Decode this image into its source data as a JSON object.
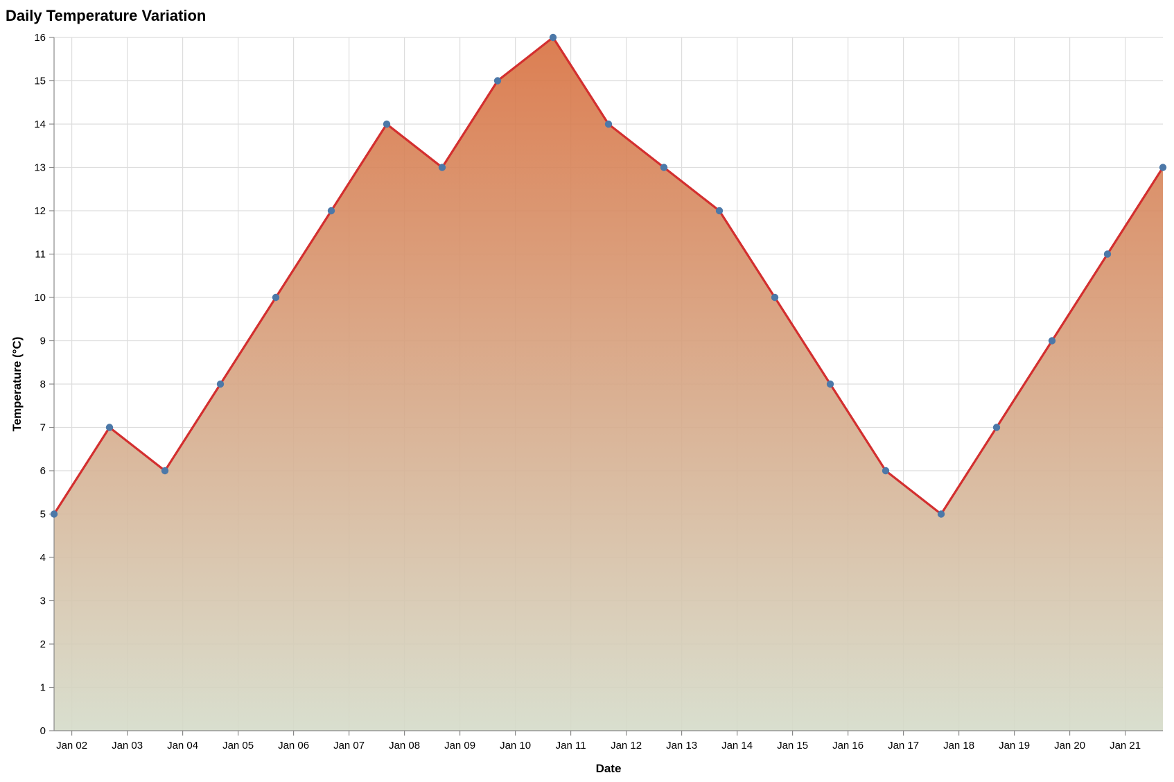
{
  "chart_data": {
    "type": "area",
    "title": "Daily Temperature Variation",
    "xlabel": "Date",
    "ylabel": "Temperature (°C)",
    "x_ticks": [
      "Jan 02",
      "Jan 03",
      "Jan 04",
      "Jan 05",
      "Jan 06",
      "Jan 07",
      "Jan 08",
      "Jan 09",
      "Jan 10",
      "Jan 11",
      "Jan 12",
      "Jan 13",
      "Jan 14",
      "Jan 15",
      "Jan 16",
      "Jan 17",
      "Jan 18",
      "Jan 19",
      "Jan 20",
      "Jan 21"
    ],
    "y_ticks": [
      0,
      1,
      2,
      3,
      4,
      5,
      6,
      7,
      8,
      9,
      10,
      11,
      12,
      13,
      14,
      15,
      16
    ],
    "ylim": [
      0,
      16
    ],
    "grid": true,
    "colors": {
      "line": "#d32f2f",
      "point": "#4c78a8",
      "area_top": "#d8703f",
      "area_bottom": "#d5dbc9",
      "grid": "#dddddd",
      "axis": "#888888"
    },
    "points": [
      {
        "x": "2023-01-01",
        "y": 5
      },
      {
        "x": "2023-01-02",
        "y": 7
      },
      {
        "x": "2023-01-03",
        "y": 6
      },
      {
        "x": "2023-01-04",
        "y": 8
      },
      {
        "x": "2023-01-05",
        "y": 10
      },
      {
        "x": "2023-01-06",
        "y": 12
      },
      {
        "x": "2023-01-07",
        "y": 14
      },
      {
        "x": "2023-01-08",
        "y": 13
      },
      {
        "x": "2023-01-09",
        "y": 15
      },
      {
        "x": "2023-01-10",
        "y": 16
      },
      {
        "x": "2023-01-11",
        "y": 14
      },
      {
        "x": "2023-01-12",
        "y": 13
      },
      {
        "x": "2023-01-13",
        "y": 12
      },
      {
        "x": "2023-01-14",
        "y": 10
      },
      {
        "x": "2023-01-15",
        "y": 8
      },
      {
        "x": "2023-01-16",
        "y": 6
      },
      {
        "x": "2023-01-17",
        "y": 5
      },
      {
        "x": "2023-01-18",
        "y": 7
      },
      {
        "x": "2023-01-19",
        "y": 9
      },
      {
        "x": "2023-01-20",
        "y": 11
      },
      {
        "x": "2023-01-21",
        "y": 13
      }
    ]
  }
}
